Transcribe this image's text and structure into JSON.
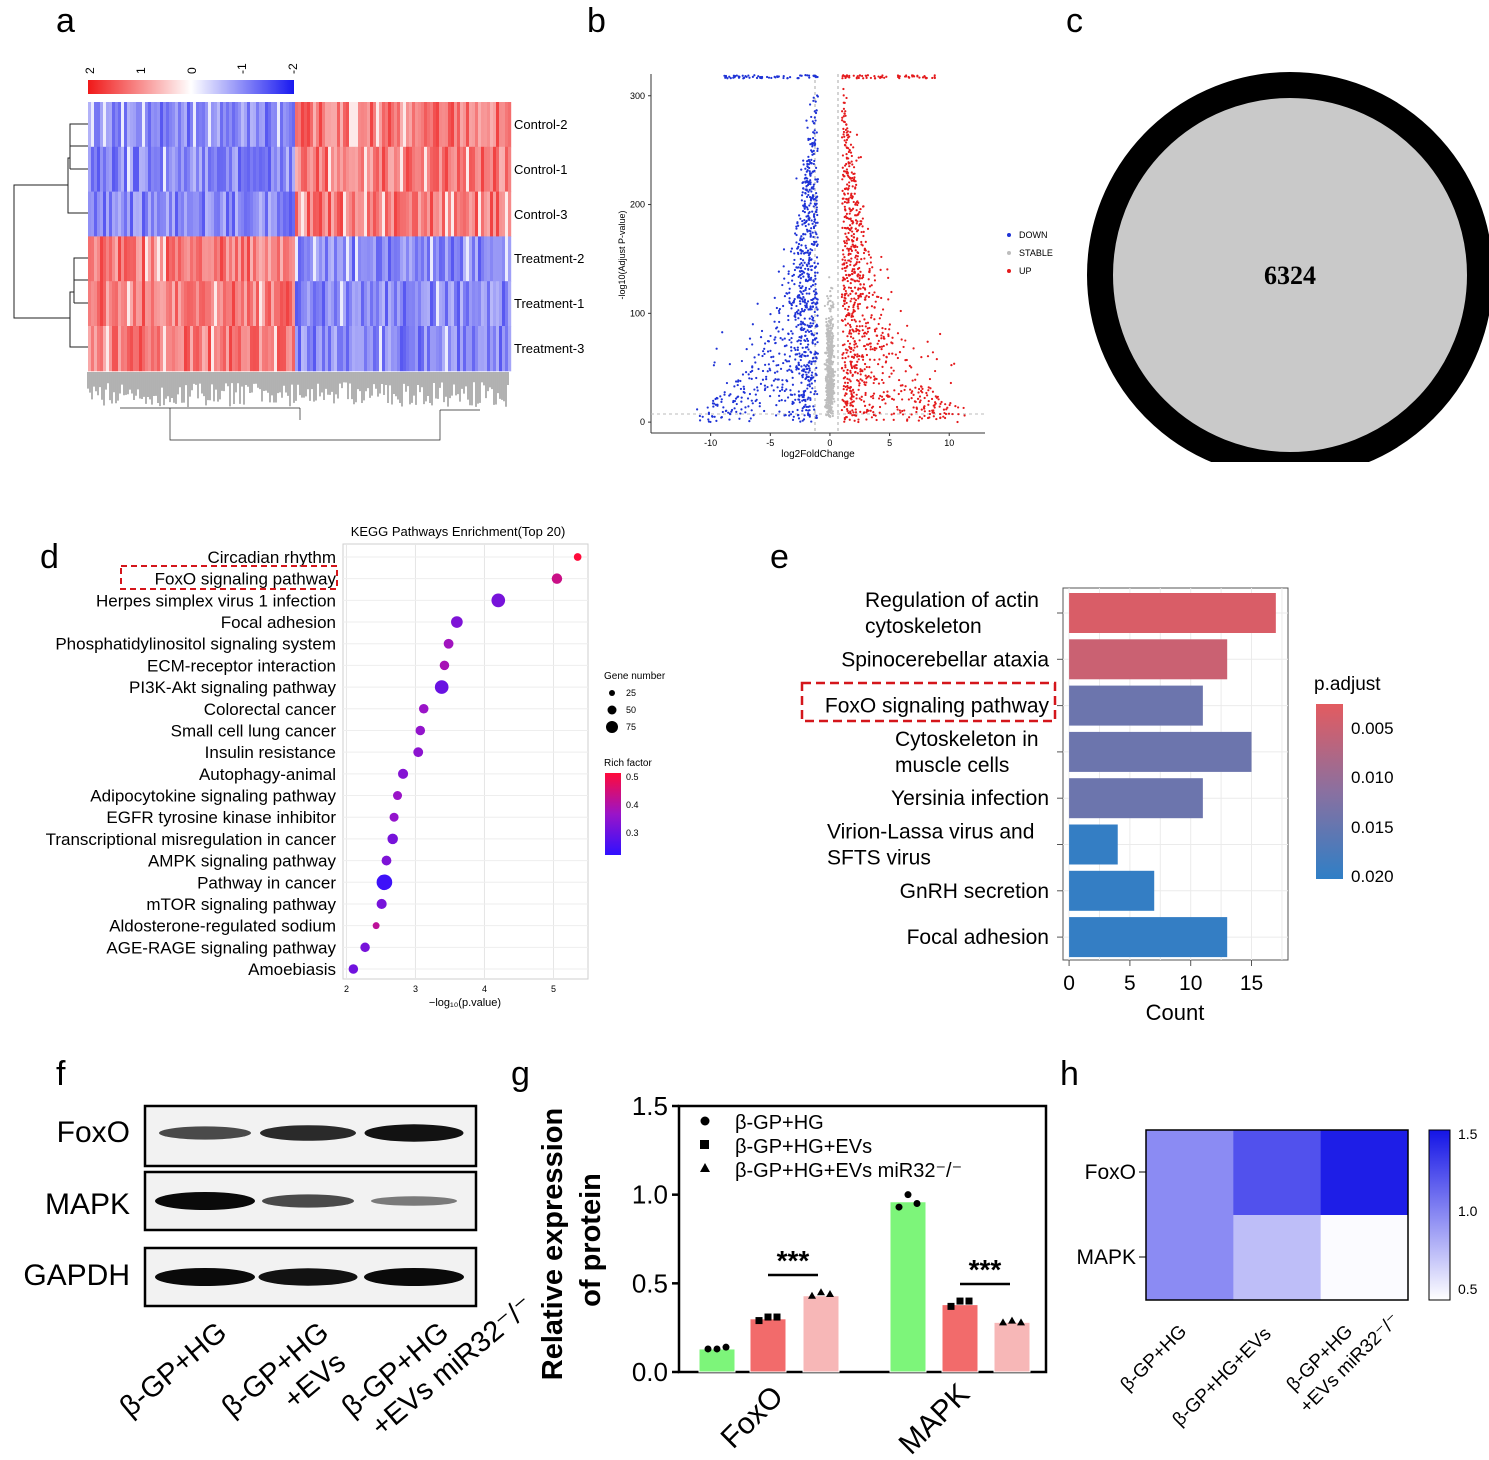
{
  "panel_letters": {
    "a": "a",
    "b": "b",
    "c": "c",
    "d": "d",
    "e": "e",
    "f": "f",
    "g": "g",
    "h": "h"
  },
  "colors": {
    "up": "#e41a1c",
    "down": "#1f33d6",
    "stable": "#bdbdbd",
    "heat_low": "#2b2bf0",
    "heat_high": "#f02b2b",
    "g_green": "#7df57a",
    "g_red": "#f26b6b",
    "g_pink": "#f7b7b7"
  },
  "chart_data": [
    {
      "panel": "a",
      "type": "heatmap",
      "rows": [
        "Control-2",
        "Control-1",
        "Control-3",
        "Treatment-2",
        "Treatment-1",
        "Treatment-3"
      ],
      "color_scale_ticks": [
        "2",
        "1",
        "0",
        "-1",
        "-2"
      ],
      "pattern": {
        "left_block": [
          "blue",
          "blue",
          "blue",
          "red",
          "red",
          "red"
        ],
        "right_block": [
          "red",
          "red",
          "red",
          "blue",
          "blue",
          "blue"
        ]
      }
    },
    {
      "panel": "b",
      "type": "scatter",
      "xlabel": "log2FoldChange",
      "ylabel": "-log10(Adjust P-value)",
      "xticks": [
        "-10",
        "-5",
        "0",
        "5",
        "10"
      ],
      "yticks": [
        "0",
        "100",
        "200",
        "300"
      ],
      "xlim": [
        -15,
        13
      ],
      "ylim": [
        -10,
        320
      ],
      "legend": [
        "DOWN",
        "STABLE",
        "UP"
      ],
      "legend_position": "right"
    },
    {
      "panel": "c",
      "type": "venn",
      "count": "6324"
    },
    {
      "panel": "d",
      "type": "scatter",
      "title": "KEGG Pathways Enrichment(Top 20)",
      "xlabel": "−log₁₀(p.value)",
      "xticks": [
        "2",
        "3",
        "4",
        "5"
      ],
      "xlim": [
        1.95,
        5.5
      ],
      "size_legend_title": "Gene number",
      "size_legend": [
        {
          "label": "25",
          "value": 25
        },
        {
          "label": "50",
          "value": 50
        },
        {
          "label": "75",
          "value": 75
        }
      ],
      "color_legend_title": "Rich factor",
      "color_legend_ticks": [
        "0.5",
        "0.4",
        "0.3"
      ],
      "color_range": [
        0.2,
        0.5
      ],
      "highlight": "FoxO signaling pathway",
      "points": [
        {
          "term": "Circadian rhythm",
          "x": 5.35,
          "genes": 8,
          "rich": 0.52
        },
        {
          "term": "FoxO signaling pathway",
          "x": 5.05,
          "genes": 25,
          "rich": 0.42
        },
        {
          "term": "Herpes simplex virus 1 infection",
          "x": 4.2,
          "genes": 55,
          "rich": 0.3
        },
        {
          "term": "Focal adhesion",
          "x": 3.6,
          "genes": 35,
          "rich": 0.31
        },
        {
          "term": "Phosphatidylinositol signaling system",
          "x": 3.48,
          "genes": 20,
          "rich": 0.36
        },
        {
          "term": "ECM-receptor interaction",
          "x": 3.42,
          "genes": 18,
          "rich": 0.37
        },
        {
          "term": "PI3K-Akt signaling pathway",
          "x": 3.38,
          "genes": 55,
          "rich": 0.28
        },
        {
          "term": "Colorectal cancer",
          "x": 3.12,
          "genes": 18,
          "rich": 0.35
        },
        {
          "term": "Small cell lung cancer",
          "x": 3.07,
          "genes": 18,
          "rich": 0.34
        },
        {
          "term": "Insulin resistance",
          "x": 3.04,
          "genes": 20,
          "rich": 0.33
        },
        {
          "term": "Autophagy-animal",
          "x": 2.82,
          "genes": 22,
          "rich": 0.32
        },
        {
          "term": "Adipocytokine signaling pathway",
          "x": 2.74,
          "genes": 15,
          "rich": 0.35
        },
        {
          "term": "EGFR tyrosine kinase inhibitor",
          "x": 2.69,
          "genes": 15,
          "rich": 0.34
        },
        {
          "term": "Transcriptional misregulation in cancer",
          "x": 2.67,
          "genes": 25,
          "rich": 0.3
        },
        {
          "term": "AMPK signaling pathway",
          "x": 2.58,
          "genes": 20,
          "rich": 0.31
        },
        {
          "term": "Pathway in cancer",
          "x": 2.55,
          "genes": 80,
          "rich": 0.22
        },
        {
          "term": "mTOR signaling pathway",
          "x": 2.51,
          "genes": 22,
          "rich": 0.3
        },
        {
          "term": "Aldosterone-regulated sodium",
          "x": 2.43,
          "genes": 5,
          "rich": 0.4
        },
        {
          "term": "AGE-RAGE signaling pathway",
          "x": 2.27,
          "genes": 18,
          "rich": 0.3
        },
        {
          "term": "Amoebiasis",
          "x": 2.1,
          "genes": 18,
          "rich": 0.29
        }
      ]
    },
    {
      "panel": "e",
      "type": "bar",
      "xlabel": "Count",
      "xticks": [
        "0",
        "5",
        "10",
        "15"
      ],
      "xlim": [
        -0.5,
        18
      ],
      "legend_title": "p.adjust",
      "legend_ticks": [
        "0.005",
        "0.010",
        "0.015",
        "0.020"
      ],
      "padj_range": [
        0.003,
        0.021
      ],
      "highlight": "FoxO signaling pathway",
      "bars": [
        {
          "lines": [
            "Regulation of actin",
            "cytoskeleton"
          ],
          "count": 17,
          "padj": 0.004
        },
        {
          "lines": [
            "Spinocerebellar ataxia"
          ],
          "count": 13,
          "padj": 0.0055
        },
        {
          "lines": [
            "FoxO signaling pathway"
          ],
          "count": 11,
          "padj": 0.015
        },
        {
          "lines": [
            "Cytoskeleton in",
            "muscle cells"
          ],
          "count": 15,
          "padj": 0.015
        },
        {
          "lines": [
            "Yersinia infection"
          ],
          "count": 11,
          "padj": 0.015
        },
        {
          "lines": [
            "Virion-Lassa virus and",
            "SFTS virus"
          ],
          "count": 4,
          "padj": 0.0205
        },
        {
          "lines": [
            "GnRH secretion"
          ],
          "count": 7,
          "padj": 0.0205
        },
        {
          "lines": [
            "Focal adhesion"
          ],
          "count": 13,
          "padj": 0.0205
        }
      ]
    },
    {
      "panel": "f",
      "type": "table",
      "rows": [
        "FoxO",
        "MAPK",
        "GAPDH"
      ],
      "lanes": [
        [
          "β-GP+HG"
        ],
        [
          "β-GP+HG",
          "+EVs"
        ],
        [
          "β-GP+HG",
          "+EVs miR32⁻/⁻"
        ]
      ],
      "intensity": {
        "FoxO": [
          0.6,
          0.8,
          0.95
        ],
        "MAPK": [
          1.0,
          0.6,
          0.3
        ],
        "GAPDH": [
          1.0,
          0.95,
          1.0
        ]
      }
    },
    {
      "panel": "g",
      "type": "bar",
      "ylabel_lines": [
        "Relative expression",
        "of protein"
      ],
      "categories": [
        "FoxO",
        "MAPK"
      ],
      "yticks": [
        "0.0",
        "0.5",
        "1.0",
        "1.5"
      ],
      "ylim": [
        0,
        1.5
      ],
      "series": [
        {
          "name": "β-GP+HG",
          "values": [
            0.13,
            0.96
          ],
          "points": [
            [
              0.13,
              0.13,
              0.14
            ],
            [
              0.93,
              1.0,
              0.95
            ]
          ]
        },
        {
          "name": "β-GP+HG+EVs",
          "values": [
            0.3,
            0.38
          ],
          "points": [
            [
              0.29,
              0.31,
              0.31
            ],
            [
              0.37,
              0.4,
              0.4
            ]
          ]
        },
        {
          "name": "β-GP+HG+EVs miR32⁻/⁻",
          "values": [
            0.43,
            0.28
          ],
          "points": [
            [
              0.43,
              0.45,
              0.44
            ],
            [
              0.28,
              0.29,
              0.28
            ]
          ]
        }
      ],
      "significance": "***"
    },
    {
      "panel": "h",
      "type": "heatmap",
      "rows": [
        "FoxO",
        "MAPK"
      ],
      "columns": [
        [
          "β-GP+HG"
        ],
        [
          "β-GP+HG+EVs"
        ],
        [
          "β-GP+HG",
          "+EVs miR32⁻/⁻"
        ]
      ],
      "values": [
        [
          0.97,
          1.25,
          1.5
        ],
        [
          0.97,
          0.72,
          0.42
        ]
      ],
      "color_range": [
        0.4,
        1.55
      ],
      "legend_ticks": [
        "1.5",
        "1.0",
        "0.5"
      ]
    }
  ]
}
